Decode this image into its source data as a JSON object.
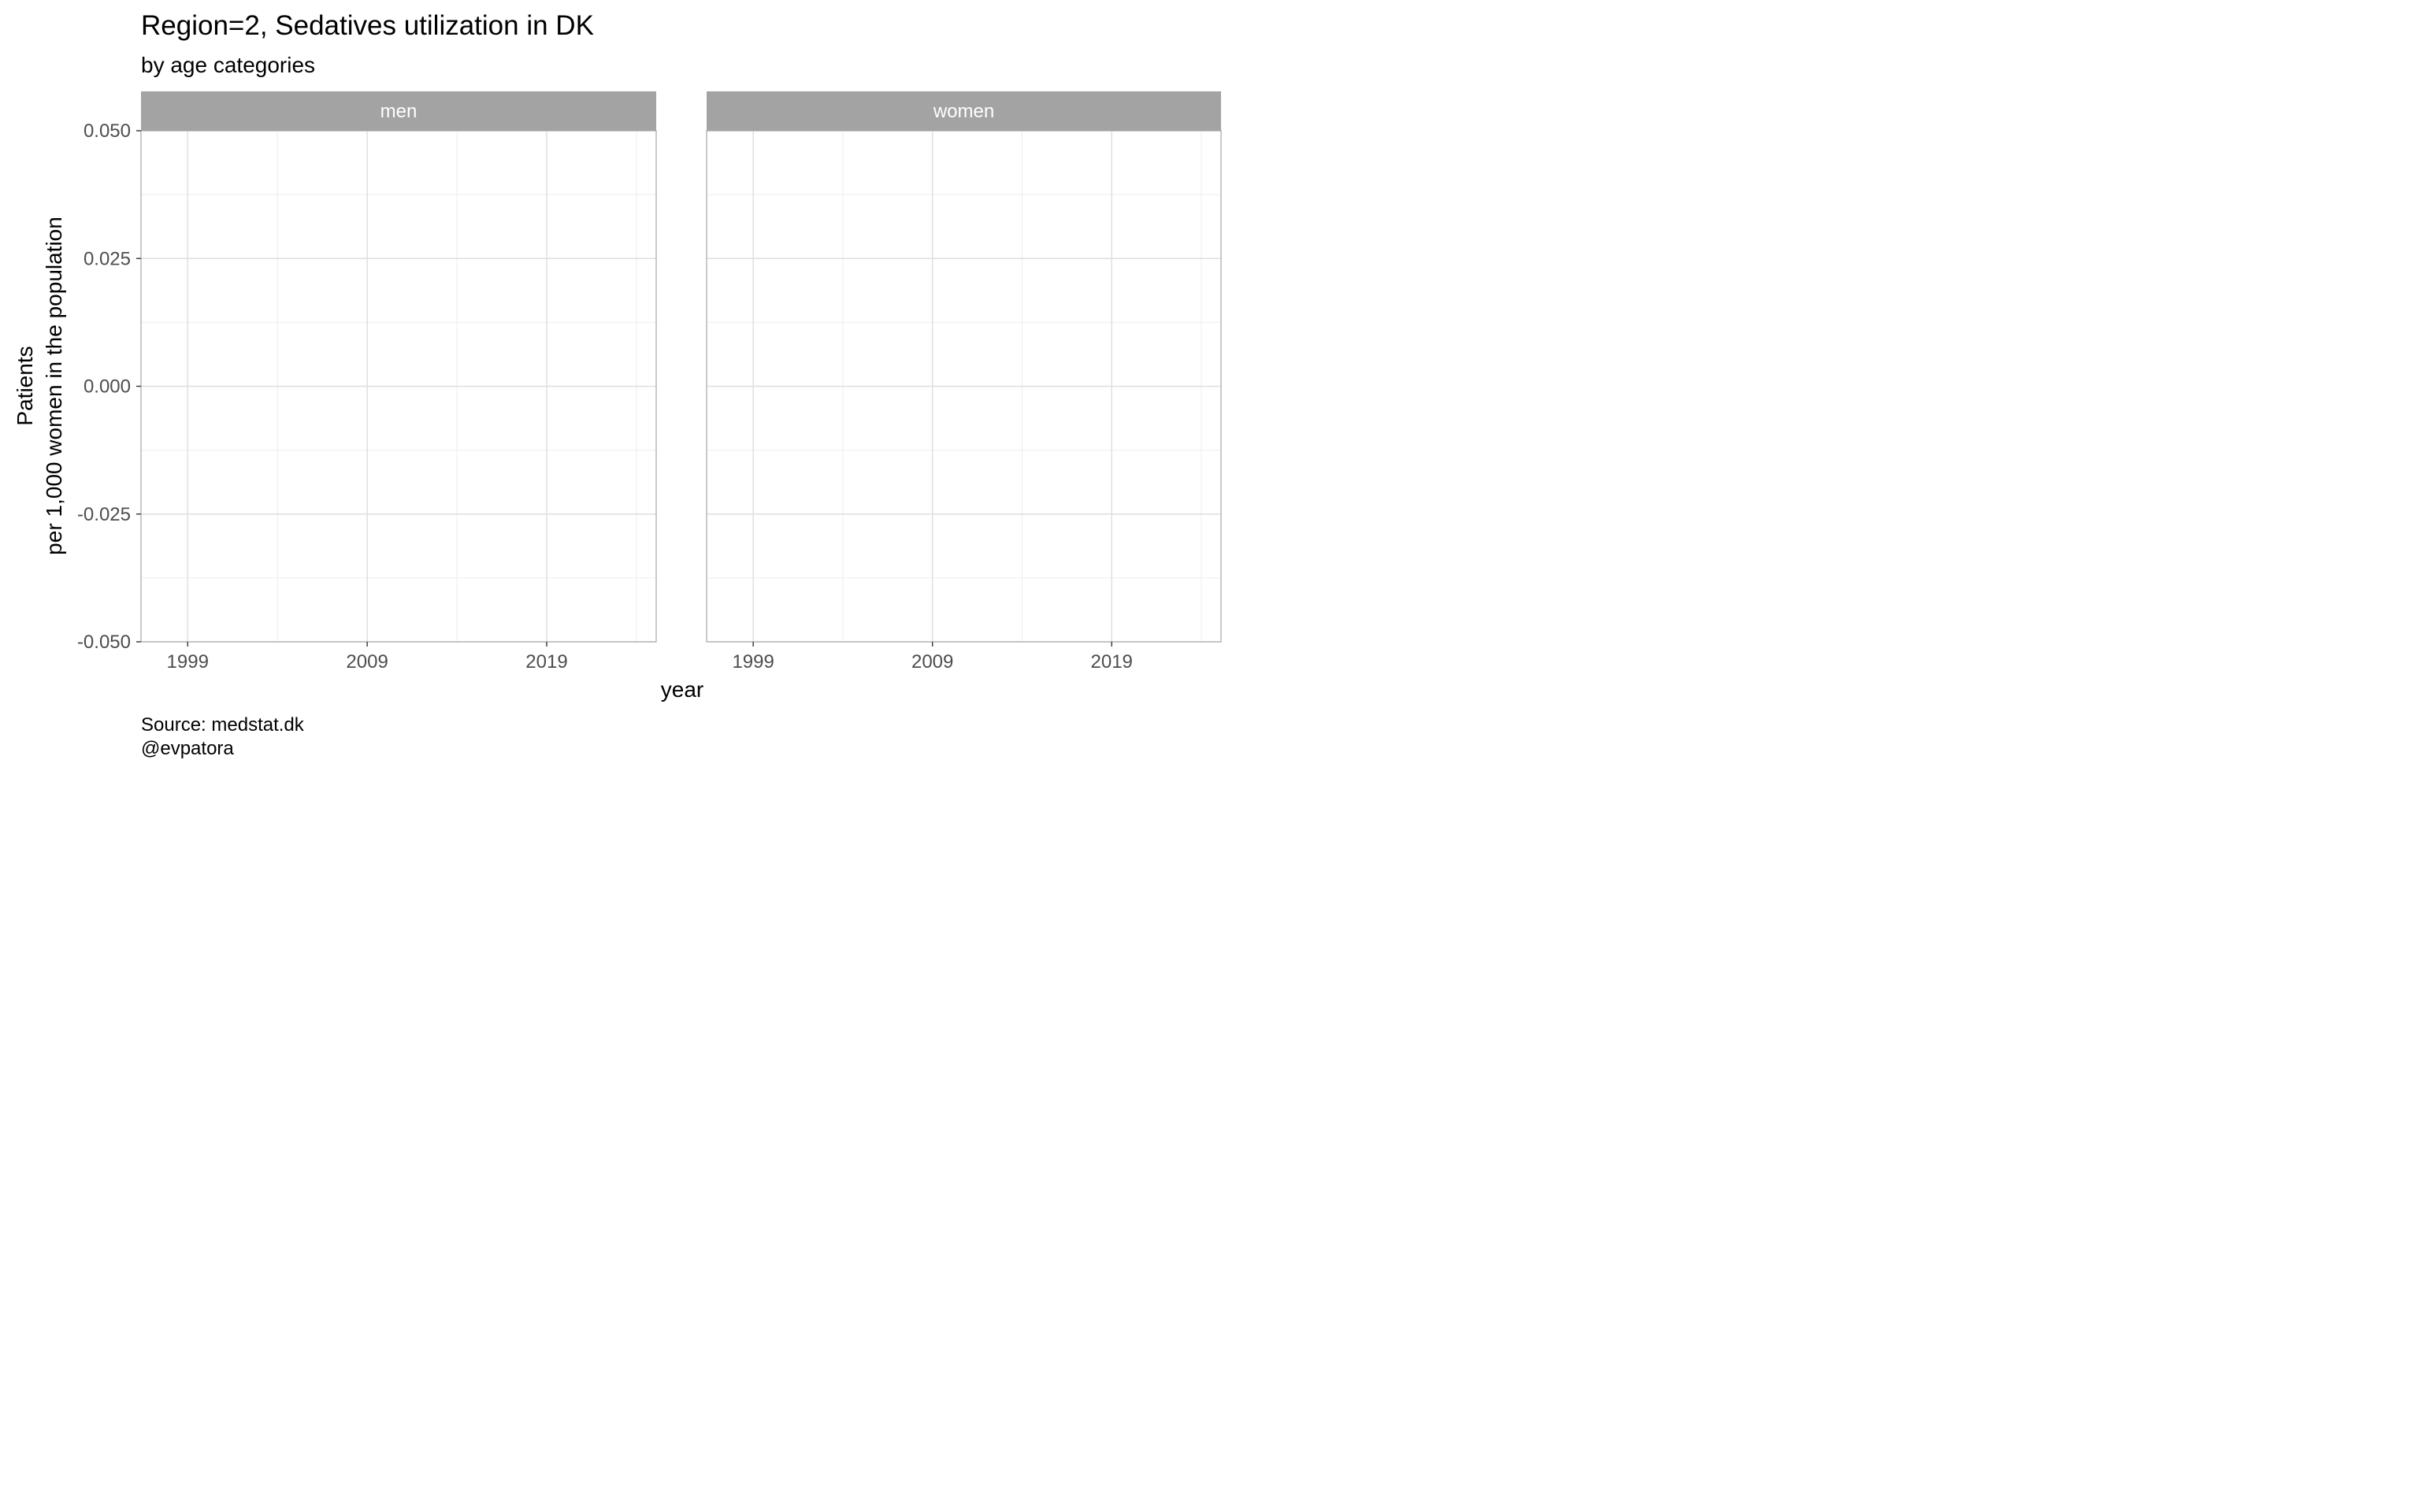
{
  "chart_data": {
    "type": "line",
    "title": "Region=2, Sedatives utilization in DK",
    "subtitle": "by age categories",
    "xlabel": "year",
    "ylabel_line1": "Patients",
    "ylabel_line2": "per 1,000 women in the population",
    "caption_line1": "Source: medstat.dk",
    "caption_line2": "@evpatora",
    "facets": [
      "men",
      "women"
    ],
    "xlim": [
      1996.4,
      2025.1
    ],
    "ylim": [
      -0.05,
      0.05
    ],
    "x_major_ticks": [
      1999,
      2009,
      2019
    ],
    "x_minor_ticks": [
      2004,
      2014,
      2024
    ],
    "x_tick_labels": [
      "1999",
      "2009",
      "2019"
    ],
    "y_major_ticks": [
      0.05,
      0.025,
      0,
      -0.025,
      -0.05
    ],
    "y_minor_ticks": [
      0.0375,
      0.0125,
      -0.0125,
      -0.0375
    ],
    "y_tick_labels": [
      "0.050",
      "0.025",
      "0.000",
      "-0.025",
      "-0.050"
    ],
    "series": [],
    "grid": true,
    "colors": {
      "strip_fill": "#a3a3a3",
      "strip_text": "#ffffff",
      "panel_border": "#b3b3b3",
      "grid_major": "#dedede",
      "grid_minor": "#ededed",
      "tick_text": "#4d4d4d",
      "title_text": "#000000"
    }
  }
}
